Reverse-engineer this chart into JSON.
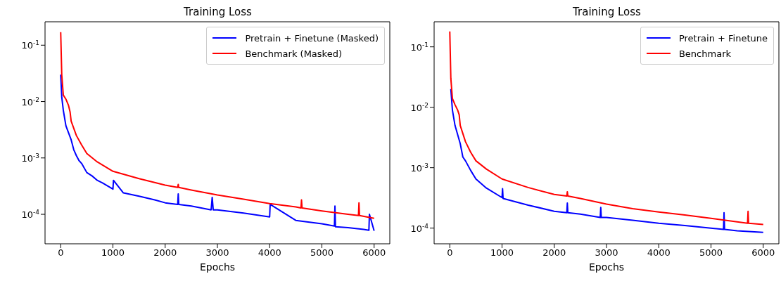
{
  "chart_data": [
    {
      "type": "line",
      "title": "Training Loss",
      "xlabel": "Epochs",
      "log": "y",
      "legend": "top right",
      "marker": "none",
      "line_style": "solid",
      "xlim": [
        -300,
        6300
      ],
      "xticks": [
        0,
        1000,
        2000,
        3000,
        4000,
        5000,
        6000
      ],
      "ylim": [
        3e-05,
        0.26
      ],
      "yticks": [
        {
          "value": 0.1,
          "label": "10$^{-1}$"
        },
        {
          "value": 0.01,
          "label": "10$^{-2}$"
        },
        {
          "value": 0.001,
          "label": "10$^{-3}$"
        },
        {
          "value": 0.0001,
          "label": "10$^{-4}$"
        }
      ],
      "series": [
        {
          "name": "Pretrain + Finetune (Masked)",
          "color": "#0000ff",
          "x": [
            0,
            20,
            50,
            100,
            200,
            250,
            300,
            350,
            400,
            500,
            600,
            700,
            800,
            1000,
            1010,
            1200,
            1500,
            1800,
            2000,
            2240,
            2250,
            2260,
            2500,
            2880,
            2900,
            2920,
            3000,
            3500,
            4000,
            4010,
            4500,
            5000,
            5240,
            5250,
            5260,
            5500,
            5800,
            5900,
            5910,
            6000
          ],
          "values": [
            0.03,
            0.012,
            0.007,
            0.0037,
            0.0021,
            0.0014,
            0.0011,
            0.0009,
            0.0008,
            0.00055,
            0.00048,
            0.0004,
            0.00036,
            0.00028,
            0.0004,
            0.00024,
            0.00021,
            0.00018,
            0.00016,
            0.00015,
            0.00023,
            0.00015,
            0.00014,
            0.00012,
            0.0002,
            0.00012,
            0.00012,
            0.000105,
            9e-05,
            0.00015,
            7.8e-05,
            6.8e-05,
            6.2e-05,
            0.00014,
            6e-05,
            5.8e-05,
            5.4e-05,
            5.2e-05,
            0.0001,
            5.1e-05
          ]
        },
        {
          "name": "Benchmark (Masked)",
          "color": "#ff0000",
          "x": [
            0,
            20,
            50,
            100,
            150,
            180,
            200,
            300,
            400,
            500,
            700,
            1000,
            1500,
            2000,
            2240,
            2250,
            2260,
            2500,
            3000,
            3500,
            4000,
            4500,
            4600,
            4610,
            4620,
            5000,
            5500,
            5700,
            5710,
            5720,
            6000
          ],
          "values": [
            0.17,
            0.03,
            0.013,
            0.011,
            0.0085,
            0.0065,
            0.0045,
            0.0025,
            0.0017,
            0.0012,
            0.00085,
            0.00058,
            0.00043,
            0.00033,
            0.0003,
            0.00034,
            0.0003,
            0.00027,
            0.00022,
            0.000185,
            0.000155,
            0.000135,
            0.00013,
            0.00018,
            0.00013,
            0.000115,
            0.0001,
            9.5e-05,
            0.00016,
            9.5e-05,
            8.5e-05
          ]
        }
      ]
    },
    {
      "type": "line",
      "title": "Training Loss",
      "xlabel": "Epochs",
      "log": "y",
      "legend": "top right",
      "marker": "none",
      "line_style": "solid",
      "xlim": [
        -300,
        6300
      ],
      "xticks": [
        0,
        1000,
        2000,
        3000,
        4000,
        5000,
        6000
      ],
      "ylim": [
        5.5e-05,
        0.26
      ],
      "yticks": [
        {
          "value": 0.1,
          "label": "10$^{-1}$"
        },
        {
          "value": 0.01,
          "label": "10$^{-2}$"
        },
        {
          "value": 0.001,
          "label": "10$^{-3}$"
        },
        {
          "value": 0.0001,
          "label": "10$^{-4}$"
        }
      ],
      "series": [
        {
          "name": "Pretrain + Finetune",
          "color": "#0000ff",
          "x": [
            20,
            50,
            100,
            200,
            250,
            300,
            400,
            500,
            700,
            1000,
            1010,
            1020,
            1500,
            2000,
            2240,
            2250,
            2260,
            2500,
            2880,
            2890,
            2900,
            3000,
            3500,
            4000,
            4500,
            5000,
            5240,
            5250,
            5260,
            5500,
            6000
          ],
          "values": [
            0.02,
            0.009,
            0.005,
            0.0025,
            0.0015,
            0.0013,
            0.0009,
            0.00065,
            0.00046,
            0.00032,
            0.00045,
            0.00031,
            0.00024,
            0.00019,
            0.00018,
            0.00026,
            0.00018,
            0.00017,
            0.00015,
            0.00022,
            0.00015,
            0.00015,
            0.000135,
            0.00012,
            0.00011,
            0.0001,
            9.5e-05,
            0.00018,
            9.5e-05,
            9e-05,
            8.5e-05
          ]
        },
        {
          "name": "Benchmark",
          "color": "#ff0000",
          "x": [
            0,
            20,
            50,
            100,
            150,
            180,
            200,
            300,
            400,
            500,
            700,
            1000,
            1500,
            2000,
            2240,
            2250,
            2260,
            2500,
            3000,
            3500,
            4000,
            4500,
            5000,
            5700,
            5710,
            5720,
            6000
          ],
          "values": [
            0.18,
            0.03,
            0.014,
            0.011,
            0.009,
            0.0075,
            0.005,
            0.0027,
            0.0018,
            0.0013,
            0.00095,
            0.00065,
            0.00047,
            0.00036,
            0.00034,
            0.0004,
            0.00034,
            0.00031,
            0.00025,
            0.00021,
            0.000185,
            0.000165,
            0.000145,
            0.00012,
            0.00019,
            0.00012,
            0.000115
          ]
        }
      ]
    }
  ]
}
